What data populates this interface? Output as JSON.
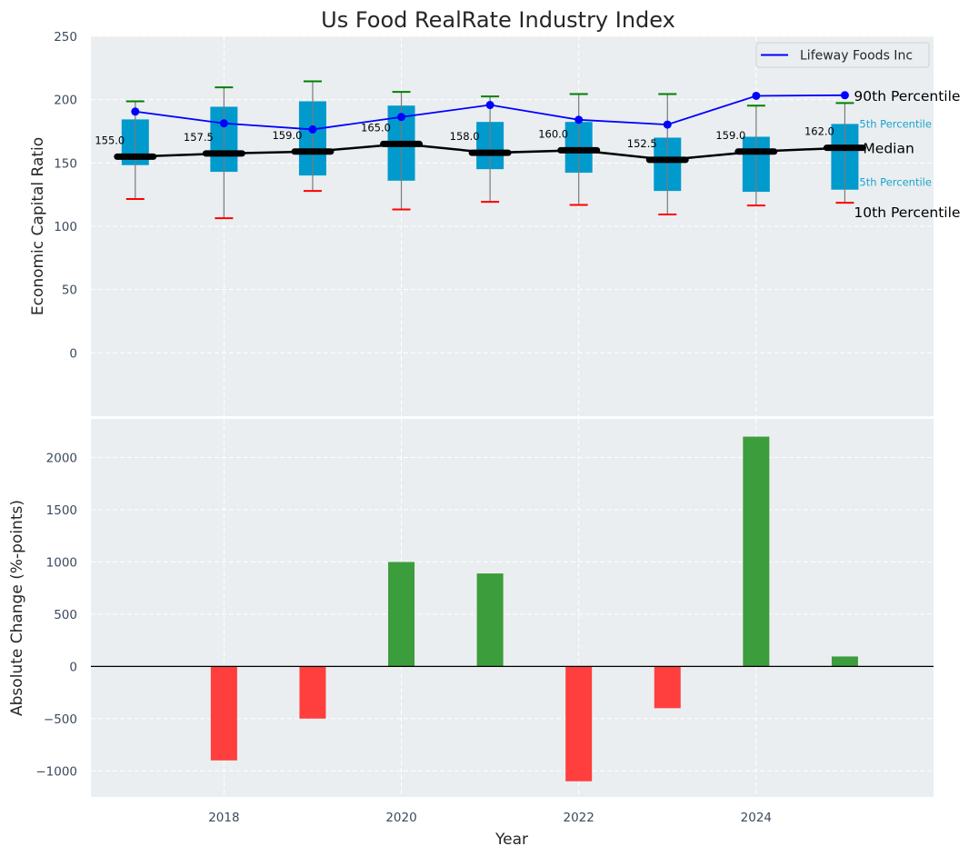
{
  "chart_data": [
    {
      "type": "box",
      "title": "Us Food RealRate Industry Index",
      "xlabel": "",
      "ylabel": "Economic Capital Ratio",
      "ylim": [
        -50,
        250
      ],
      "xlim": [
        2016.5,
        2026
      ],
      "yticks": [
        0,
        50,
        100,
        150,
        200,
        250
      ],
      "grid": true,
      "legend": {
        "placement": "top-right",
        "entries": [
          {
            "label": "Lifeway Foods Inc",
            "color": "#0000ff"
          }
        ]
      },
      "years": [
        2017,
        2018,
        2019,
        2020,
        2021,
        2022,
        2023,
        2024,
        2025
      ],
      "p10": [
        121.5,
        106.4,
        127.9,
        113.3,
        119.3,
        116.9,
        109.3,
        116.4,
        118.6
      ],
      "p25": [
        148.3,
        143.0,
        140.1,
        136.0,
        145.1,
        142.3,
        127.9,
        127.2,
        128.9
      ],
      "median": [
        155.0,
        157.5,
        159.0,
        165.0,
        158.0,
        160.0,
        152.5,
        159.0,
        162.0
      ],
      "p75": [
        184.4,
        194.4,
        198.7,
        195.3,
        182.4,
        182.4,
        170.0,
        170.7,
        180.8
      ],
      "p90": [
        198.7,
        209.7,
        214.5,
        206.1,
        202.5,
        204.4,
        204.4,
        195.3,
        197.3
      ],
      "median_labels": [
        "155.0",
        "157.5",
        "159.0",
        "165.0",
        "158.0",
        "160.0",
        "152.5",
        "159.0",
        "162.0"
      ],
      "series": [
        {
          "name": "Lifeway Foods Inc",
          "values": [
            190.6,
            181.3,
            176.5,
            186.3,
            195.8,
            184.1,
            180.3,
            203.0,
            203.5
          ]
        }
      ],
      "annotations": {
        "p90": "90th Percentile",
        "p75": "75th Percentile",
        "median": "Median",
        "p25": "25th Percentile",
        "p10": "10th Percentile"
      },
      "colors": {
        "box": "#009acd",
        "median": "#000000",
        "company": "#0000ff",
        "p90_cap": "#008000",
        "p10_cap": "#ff0000",
        "background": "#eaeef0"
      }
    },
    {
      "type": "bar",
      "xlabel": "Year",
      "ylabel": "Absolute Change (%-points)",
      "ylim": [
        -1250,
        2370
      ],
      "xlim": [
        2016.5,
        2026
      ],
      "yticks": [
        -1000,
        -500,
        0,
        500,
        1000,
        1500,
        2000
      ],
      "yticklabels": [
        "−1000",
        "−500",
        "0",
        "500",
        "1000",
        "1500",
        "2000"
      ],
      "xticks": [
        2018,
        2020,
        2022,
        2024
      ],
      "xticklabels": [
        "2018",
        "2020",
        "2022",
        "2024"
      ],
      "grid": true,
      "categories": [
        2018,
        2019,
        2020,
        2021,
        2022,
        2023,
        2024,
        2025
      ],
      "values": [
        -900,
        -500,
        1000,
        890,
        -1100,
        -400,
        2200,
        95
      ],
      "colors": {
        "positive": "#3c9d3c",
        "negative": "#ff3e3e",
        "zero_line": "#000000",
        "background": "#eaeef0"
      }
    }
  ]
}
